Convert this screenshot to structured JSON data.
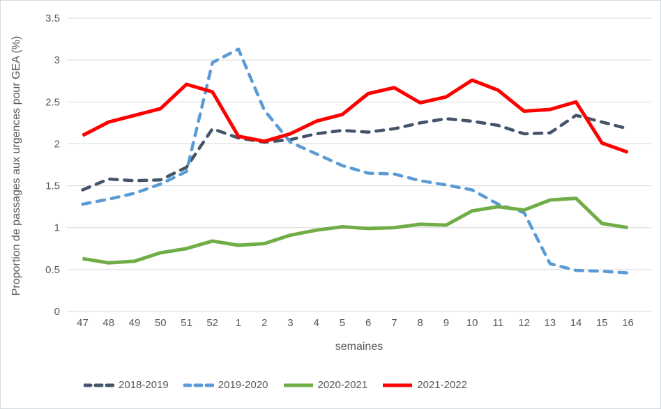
{
  "chart_data": {
    "type": "line",
    "title": "",
    "xlabel": "semaines",
    "ylabel": "Proportion de passages aux urgences pour GEA (%)",
    "categories": [
      "47",
      "48",
      "49",
      "50",
      "51",
      "52",
      "1",
      "2",
      "3",
      "4",
      "5",
      "6",
      "7",
      "8",
      "9",
      "10",
      "11",
      "12",
      "13",
      "14",
      "15",
      "16"
    ],
    "ylim": [
      0,
      3.5
    ],
    "yticks": [
      0,
      0.5,
      1,
      1.5,
      2,
      2.5,
      3,
      3.5
    ],
    "ytick_labels": [
      "0",
      "0.5",
      "1",
      "1.5",
      "2",
      "2.5",
      "3",
      "3.5"
    ],
    "grid": true,
    "legend_position": "bottom",
    "series": [
      {
        "name": "2018-2019",
        "color": "#44546A",
        "style": "dashed",
        "values": [
          1.45,
          1.58,
          1.56,
          1.57,
          1.72,
          2.18,
          2.07,
          2.02,
          2.05,
          2.12,
          2.16,
          2.14,
          2.18,
          2.25,
          2.3,
          2.27,
          2.22,
          2.12,
          2.13,
          2.34,
          2.26,
          2.18
        ]
      },
      {
        "name": "2019-2020",
        "color": "#5B9BD5",
        "style": "dashed",
        "values": [
          1.28,
          1.34,
          1.41,
          1.52,
          1.67,
          2.97,
          3.13,
          2.4,
          2.02,
          1.88,
          1.74,
          1.65,
          1.64,
          1.56,
          1.51,
          1.45,
          1.28,
          1.18,
          0.57,
          0.49,
          0.48,
          0.46
        ]
      },
      {
        "name": "2020-2021",
        "color": "#70AD47",
        "style": "solid",
        "values": [
          0.63,
          0.58,
          0.6,
          0.7,
          0.75,
          0.84,
          0.79,
          0.81,
          0.91,
          0.97,
          1.01,
          0.99,
          1.0,
          1.04,
          1.03,
          1.2,
          1.25,
          1.21,
          1.33,
          1.35,
          1.05,
          1.0
        ]
      },
      {
        "name": "2021-2022",
        "color": "#FF0000",
        "style": "solid",
        "values": [
          2.1,
          2.26,
          2.34,
          2.42,
          2.71,
          2.62,
          2.09,
          2.03,
          2.12,
          2.27,
          2.35,
          2.6,
          2.67,
          2.49,
          2.56,
          2.76,
          2.64,
          2.39,
          2.41,
          2.5,
          2.01,
          1.9
        ]
      }
    ]
  }
}
